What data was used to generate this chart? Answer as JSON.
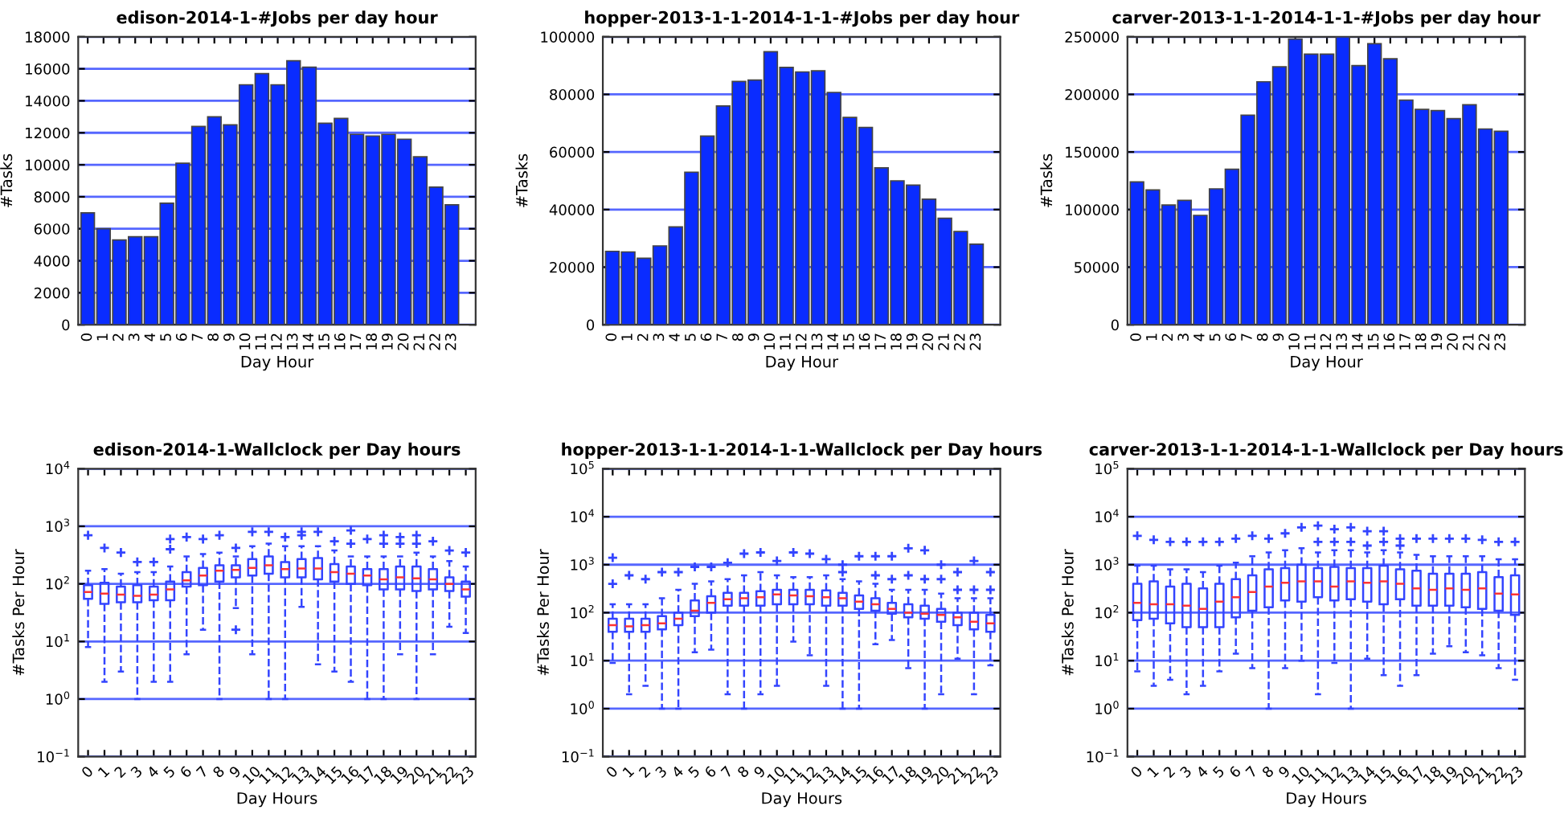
{
  "chart_data": [
    {
      "type": "bar",
      "title": "edison-2014-1-#Jobs per day hour",
      "xlabel": "Day Hour",
      "ylabel": "#Tasks",
      "categories": [
        "0",
        "1",
        "2",
        "3",
        "4",
        "5",
        "6",
        "7",
        "8",
        "9",
        "10",
        "11",
        "12",
        "13",
        "14",
        "15",
        "16",
        "17",
        "18",
        "19",
        "20",
        "21",
        "22",
        "23"
      ],
      "values": [
        7000,
        6000,
        5300,
        5500,
        5500,
        7600,
        10100,
        12400,
        13000,
        12500,
        15000,
        15700,
        15000,
        16500,
        16100,
        12600,
        12900,
        11900,
        11800,
        11900,
        11600,
        10500,
        8600,
        7500
      ],
      "color": "#0a2cff",
      "ylim": [
        0,
        18000
      ],
      "yticks": [
        0,
        2000,
        4000,
        6000,
        8000,
        10000,
        12000,
        14000,
        16000,
        18000
      ],
      "grid": "y"
    },
    {
      "type": "bar",
      "title": "hopper-2013-1-1-2014-1-1-#Jobs per day hour",
      "xlabel": "Day Hour",
      "ylabel": "#Tasks",
      "categories": [
        "0",
        "1",
        "2",
        "3",
        "4",
        "5",
        "6",
        "7",
        "8",
        "9",
        "10",
        "11",
        "12",
        "13",
        "14",
        "15",
        "16",
        "17",
        "18",
        "19",
        "20",
        "21",
        "22",
        "23"
      ],
      "values": [
        25500,
        25300,
        23100,
        27400,
        34000,
        53000,
        65500,
        76000,
        84500,
        85000,
        94800,
        89400,
        87800,
        88200,
        80700,
        72000,
        68500,
        54500,
        50000,
        48500,
        43600,
        37000,
        32400,
        28000
      ],
      "color": "#0a2cff",
      "ylim": [
        0,
        100000
      ],
      "yticks": [
        0,
        20000,
        40000,
        60000,
        80000,
        100000
      ],
      "grid": "y"
    },
    {
      "type": "bar",
      "title": "carver-2013-1-1-2014-1-1-#Jobs per day hour",
      "xlabel": "Day Hour",
      "ylabel": "#Tasks",
      "categories": [
        "0",
        "1",
        "2",
        "3",
        "4",
        "5",
        "6",
        "7",
        "8",
        "9",
        "10",
        "11",
        "12",
        "13",
        "14",
        "15",
        "16",
        "17",
        "18",
        "19",
        "20",
        "21",
        "22",
        "23"
      ],
      "values": [
        124000,
        117000,
        104000,
        108000,
        95000,
        118000,
        135000,
        182000,
        211000,
        224000,
        248000,
        235000,
        235000,
        250000,
        225000,
        244000,
        231000,
        195000,
        187000,
        186000,
        179000,
        191000,
        170000,
        168000
      ],
      "color": "#0a2cff",
      "ylim": [
        0,
        250000
      ],
      "yticks": [
        0,
        50000,
        100000,
        150000,
        200000,
        250000
      ],
      "grid": "y"
    },
    {
      "type": "box",
      "title": "edison-2014-1-Wallclock per Day hours",
      "xlabel": "Day Hours",
      "ylabel": "#Tasks Per Hour",
      "log": "y",
      "color": "#3344ff",
      "grid": "y",
      "categories": [
        "0",
        "1",
        "2",
        "3",
        "4",
        "5",
        "6",
        "7",
        "8",
        "9",
        "10",
        "11",
        "12",
        "13",
        "14",
        "15",
        "16",
        "17",
        "18",
        "19",
        "20",
        "21",
        "22",
        "23"
      ],
      "ylim": [
        0.1,
        10000
      ],
      "yticks": [
        {
          "value": 0.1,
          "label": "10$^{−1}$"
        },
        {
          "value": 1,
          "label": "10$^{0}$"
        },
        {
          "value": 10,
          "label": "10$^{1}$"
        },
        {
          "value": 100,
          "label": "10$^{2}$"
        },
        {
          "value": 1000,
          "label": "10$^{3}$"
        },
        {
          "value": 10000,
          "label": "10$^{4}$"
        }
      ],
      "boxes": [
        {
          "low": 8,
          "q1": 55,
          "median": 72,
          "q3": 95,
          "high": 170,
          "outliers": [
            700
          ]
        },
        {
          "low": 2,
          "q1": 45,
          "median": 68,
          "q3": 105,
          "high": 180,
          "outliers": [
            420
          ]
        },
        {
          "low": 3,
          "q1": 48,
          "median": 65,
          "q3": 90,
          "high": 150,
          "outliers": [
            350
          ]
        },
        {
          "low": 1,
          "q1": 48,
          "median": 62,
          "q3": 95,
          "high": 160,
          "outliers": [
            240
          ]
        },
        {
          "low": 2,
          "q1": 52,
          "median": 65,
          "q3": 90,
          "high": 160,
          "outliers": [
            240
          ]
        },
        {
          "low": 2,
          "q1": 52,
          "median": 80,
          "q3": 110,
          "high": 200,
          "outliers": [
            400,
            600
          ]
        },
        {
          "low": 6,
          "q1": 90,
          "median": 115,
          "q3": 160,
          "high": 300,
          "outliers": [
            650
          ]
        },
        {
          "low": 16,
          "q1": 95,
          "median": 140,
          "q3": 190,
          "high": 330,
          "outliers": [
            600
          ]
        },
        {
          "low": 1,
          "q1": 110,
          "median": 170,
          "q3": 210,
          "high": 350,
          "outliers": [
            700
          ]
        },
        {
          "low": 38,
          "q1": 130,
          "median": 175,
          "q3": 210,
          "high": 300,
          "outliers": [
            16,
            420
          ]
        },
        {
          "low": 6,
          "q1": 140,
          "median": 190,
          "q3": 270,
          "high": 450,
          "outliers": [
            800
          ]
        },
        {
          "low": 1,
          "q1": 150,
          "median": 210,
          "q3": 300,
          "high": 500,
          "outliers": [
            800
          ]
        },
        {
          "low": 1,
          "q1": 130,
          "median": 180,
          "q3": 240,
          "high": 450,
          "outliers": [
            650
          ]
        },
        {
          "low": 40,
          "q1": 130,
          "median": 185,
          "q3": 270,
          "high": 450,
          "outliers": [
            700,
            800
          ]
        },
        {
          "low": 4,
          "q1": 120,
          "median": 185,
          "q3": 280,
          "high": 450,
          "outliers": [
            800
          ]
        },
        {
          "low": 3,
          "q1": 110,
          "median": 160,
          "q3": 220,
          "high": 380,
          "outliers": [
            550
          ]
        },
        {
          "low": 2,
          "q1": 100,
          "median": 150,
          "q3": 200,
          "high": 300,
          "outliers": [
            500,
            850
          ]
        },
        {
          "low": 1,
          "q1": 95,
          "median": 140,
          "q3": 180,
          "high": 300,
          "outliers": [
            600
          ]
        },
        {
          "low": 1,
          "q1": 80,
          "median": 120,
          "q3": 180,
          "high": 300,
          "outliers": [
            500,
            700
          ]
        },
        {
          "low": 6,
          "q1": 80,
          "median": 130,
          "q3": 200,
          "high": 300,
          "outliers": [
            500,
            650
          ]
        },
        {
          "low": 1,
          "q1": 75,
          "median": 125,
          "q3": 200,
          "high": 350,
          "outliers": [
            500,
            700
          ]
        },
        {
          "low": 6,
          "q1": 80,
          "median": 120,
          "q3": 180,
          "high": 300,
          "outliers": [
            550
          ]
        },
        {
          "low": 18,
          "q1": 75,
          "median": 100,
          "q3": 130,
          "high": 250,
          "outliers": [
            380
          ]
        },
        {
          "low": 14,
          "q1": 60,
          "median": 80,
          "q3": 110,
          "high": 200,
          "outliers": [
            350
          ]
        }
      ]
    },
    {
      "type": "box",
      "title": "hopper-2013-1-1-2014-1-1-Wallclock per Day hours",
      "xlabel": "Day Hours",
      "ylabel": "#Tasks Per Hour",
      "log": "y",
      "color": "#3344ff",
      "grid": "y",
      "categories": [
        "0",
        "1",
        "2",
        "3",
        "4",
        "5",
        "6",
        "7",
        "8",
        "9",
        "10",
        "11",
        "12",
        "13",
        "14",
        "15",
        "16",
        "17",
        "18",
        "19",
        "20",
        "21",
        "22",
        "23"
      ],
      "ylim": [
        0.1,
        100000
      ],
      "yticks": [
        {
          "value": 0.1,
          "label": "10$^{−1}$"
        },
        {
          "value": 1,
          "label": "10$^{0}$"
        },
        {
          "value": 10,
          "label": "10$^{1}$"
        },
        {
          "value": 100,
          "label": "10$^{2}$"
        },
        {
          "value": 1000,
          "label": "10$^{3}$"
        },
        {
          "value": 10000,
          "label": "10$^{4}$"
        },
        {
          "value": 100000,
          "label": "10$^{5}$"
        }
      ],
      "boxes": [
        {
          "low": 9,
          "q1": 40,
          "median": 55,
          "q3": 75,
          "high": 150,
          "outliers": [
            400,
            1400
          ]
        },
        {
          "low": 2,
          "q1": 40,
          "median": 52,
          "q3": 75,
          "high": 150,
          "outliers": [
            600
          ]
        },
        {
          "low": 3,
          "q1": 40,
          "median": 55,
          "q3": 75,
          "high": 150,
          "outliers": [
            500
          ]
        },
        {
          "low": 1,
          "q1": 45,
          "median": 60,
          "q3": 85,
          "high": 200,
          "outliers": [
            700
          ]
        },
        {
          "low": 1,
          "q1": 55,
          "median": 75,
          "q3": 100,
          "high": 300,
          "outliers": [
            700
          ]
        },
        {
          "low": 15,
          "q1": 85,
          "median": 110,
          "q3": 180,
          "high": 400,
          "outliers": [
            900
          ]
        },
        {
          "low": 17,
          "q1": 100,
          "median": 160,
          "q3": 220,
          "high": 450,
          "outliers": [
            900
          ]
        },
        {
          "low": 2,
          "q1": 140,
          "median": 190,
          "q3": 260,
          "high": 500,
          "outliers": [
            1100
          ]
        },
        {
          "low": 1,
          "q1": 140,
          "median": 200,
          "q3": 260,
          "high": 600,
          "outliers": [
            1700
          ]
        },
        {
          "low": 2,
          "q1": 140,
          "median": 210,
          "q3": 280,
          "high": 700,
          "outliers": [
            1800
          ]
        },
        {
          "low": 3,
          "q1": 150,
          "median": 240,
          "q3": 300,
          "high": 600,
          "outliers": [
            1200
          ]
        },
        {
          "low": 25,
          "q1": 150,
          "median": 230,
          "q3": 300,
          "high": 550,
          "outliers": [
            1800
          ]
        },
        {
          "low": 13,
          "q1": 150,
          "median": 220,
          "q3": 300,
          "high": 550,
          "outliers": [
            1700
          ]
        },
        {
          "low": 3,
          "q1": 140,
          "median": 210,
          "q3": 290,
          "high": 600,
          "outliers": [
            1300
          ]
        },
        {
          "low": 1,
          "q1": 140,
          "median": 200,
          "q3": 260,
          "high": 500,
          "outliers": [
            700,
            1000
          ]
        },
        {
          "low": 1,
          "q1": 120,
          "median": 170,
          "q3": 230,
          "high": 450,
          "outliers": [
            1500
          ]
        },
        {
          "low": 22,
          "q1": 110,
          "median": 150,
          "q3": 200,
          "high": 400,
          "outliers": [
            600,
            1500
          ]
        },
        {
          "low": 27,
          "q1": 95,
          "median": 120,
          "q3": 160,
          "high": 300,
          "outliers": [
            500,
            1500
          ]
        },
        {
          "low": 7,
          "q1": 80,
          "median": 100,
          "q3": 150,
          "high": 300,
          "outliers": [
            600,
            2200
          ]
        },
        {
          "low": 1,
          "q1": 75,
          "median": 95,
          "q3": 140,
          "high": 300,
          "outliers": [
            500,
            2000
          ]
        },
        {
          "low": 2,
          "q1": 65,
          "median": 90,
          "q3": 120,
          "high": 250,
          "outliers": [
            500,
            1000
          ]
        },
        {
          "low": 11,
          "q1": 55,
          "median": 80,
          "q3": 100,
          "high": 200,
          "outliers": [
            300,
            700
          ]
        },
        {
          "low": 2,
          "q1": 45,
          "median": 65,
          "q3": 100,
          "high": 200,
          "outliers": [
            300,
            1200
          ]
        },
        {
          "low": 8,
          "q1": 40,
          "median": 60,
          "q3": 90,
          "high": 200,
          "outliers": [
            300,
            700
          ]
        }
      ]
    },
    {
      "type": "box",
      "title": "carver-2013-1-1-2014-1-1-Wallclock per Day hours",
      "xlabel": "Day Hours",
      "ylabel": "#Tasks Per Hour",
      "log": "y",
      "color": "#3344ff",
      "grid": "y",
      "categories": [
        "0",
        "1",
        "2",
        "3",
        "4",
        "5",
        "6",
        "7",
        "8",
        "9",
        "10",
        "11",
        "12",
        "13",
        "14",
        "15",
        "16",
        "17",
        "18",
        "19",
        "20",
        "21",
        "22",
        "23"
      ],
      "ylim": [
        0.1,
        100000
      ],
      "yticks": [
        {
          "value": 0.1,
          "label": "10$^{−1}$"
        },
        {
          "value": 1,
          "label": "10$^{0}$"
        },
        {
          "value": 10,
          "label": "10$^{1}$"
        },
        {
          "value": 100,
          "label": "10$^{2}$"
        },
        {
          "value": 1000,
          "label": "10$^{3}$"
        },
        {
          "value": 10000,
          "label": "10$^{4}$"
        },
        {
          "value": 100000,
          "label": "10$^{5}$"
        }
      ],
      "boxes": [
        {
          "low": 6,
          "q1": 70,
          "median": 160,
          "q3": 400,
          "high": 950,
          "outliers": [
            4000
          ]
        },
        {
          "low": 3,
          "q1": 75,
          "median": 150,
          "q3": 450,
          "high": 950,
          "outliers": [
            3300
          ]
        },
        {
          "low": 4,
          "q1": 60,
          "median": 150,
          "q3": 350,
          "high": 800,
          "outliers": [
            3000
          ]
        },
        {
          "low": 2,
          "q1": 50,
          "median": 140,
          "q3": 400,
          "high": 800,
          "outliers": [
            3000
          ]
        },
        {
          "low": 3,
          "q1": 50,
          "median": 120,
          "q3": 320,
          "high": 700,
          "outliers": [
            3000
          ]
        },
        {
          "low": 6,
          "q1": 50,
          "median": 170,
          "q3": 400,
          "high": 950,
          "outliers": [
            3000
          ]
        },
        {
          "low": 14,
          "q1": 80,
          "median": 210,
          "q3": 500,
          "high": 1100,
          "outliers": [
            3500
          ]
        },
        {
          "low": 7,
          "q1": 110,
          "median": 270,
          "q3": 600,
          "high": 1500,
          "outliers": [
            4000
          ]
        },
        {
          "low": 1,
          "q1": 130,
          "median": 350,
          "q3": 800,
          "high": 1800,
          "outliers": [
            3500
          ]
        },
        {
          "low": 7,
          "q1": 180,
          "median": 420,
          "q3": 850,
          "high": 2000,
          "outliers": [
            4500
          ]
        },
        {
          "low": 10,
          "q1": 170,
          "median": 450,
          "q3": 1000,
          "high": 2200,
          "outliers": [
            6000
          ]
        },
        {
          "low": 2,
          "q1": 210,
          "median": 450,
          "q3": 850,
          "high": 1800,
          "outliers": [
            3000,
            6500
          ]
        },
        {
          "low": 9,
          "q1": 180,
          "median": 350,
          "q3": 900,
          "high": 2000,
          "outliers": [
            3000,
            5500
          ]
        },
        {
          "low": 1,
          "q1": 190,
          "median": 450,
          "q3": 850,
          "high": 2000,
          "outliers": [
            3000,
            6000
          ]
        },
        {
          "low": 11,
          "q1": 170,
          "median": 420,
          "q3": 850,
          "high": 1800,
          "outliers": [
            2500,
            5000
          ]
        },
        {
          "low": 5,
          "q1": 150,
          "median": 450,
          "q3": 950,
          "high": 2000,
          "outliers": [
            3000,
            5000
          ]
        },
        {
          "low": 3,
          "q1": 190,
          "median": 400,
          "q3": 800,
          "high": 1800,
          "outliers": [
            2500,
            3500
          ]
        },
        {
          "low": 5,
          "q1": 140,
          "median": 320,
          "q3": 750,
          "high": 1600,
          "outliers": [
            3500
          ]
        },
        {
          "low": 14,
          "q1": 140,
          "median": 300,
          "q3": 650,
          "high": 1500,
          "outliers": [
            3500
          ]
        },
        {
          "low": 20,
          "q1": 140,
          "median": 320,
          "q3": 650,
          "high": 1500,
          "outliers": [
            3500
          ]
        },
        {
          "low": 15,
          "q1": 130,
          "median": 300,
          "q3": 650,
          "high": 1500,
          "outliers": [
            3500
          ]
        },
        {
          "low": 13,
          "q1": 120,
          "median": 320,
          "q3": 700,
          "high": 1500,
          "outliers": [
            3300
          ]
        },
        {
          "low": 7,
          "q1": 110,
          "median": 250,
          "q3": 550,
          "high": 1300,
          "outliers": [
            3000
          ]
        },
        {
          "low": 4,
          "q1": 90,
          "median": 240,
          "q3": 600,
          "high": 1300,
          "outliers": [
            3000
          ]
        }
      ]
    }
  ]
}
